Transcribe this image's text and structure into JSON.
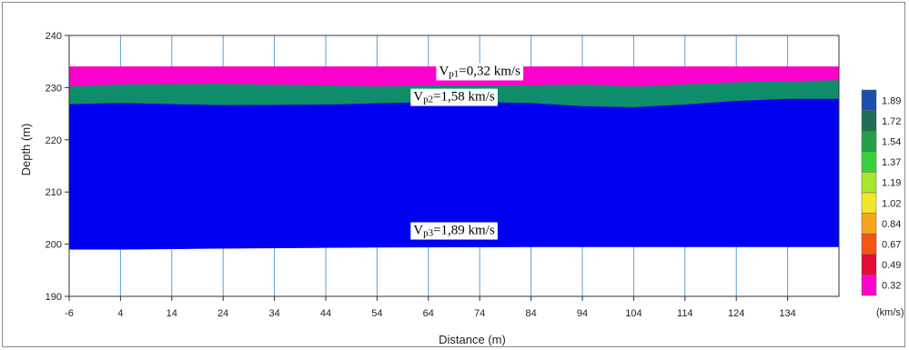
{
  "chart_data": {
    "type": "area",
    "title": "",
    "xlabel": "Distance (m)",
    "ylabel": "Depth (m)",
    "xlim": [
      -6,
      144
    ],
    "ylim": [
      190,
      240
    ],
    "x_ticks": [
      -6,
      4,
      14,
      24,
      34,
      44,
      54,
      64,
      74,
      84,
      94,
      104,
      114,
      124,
      134
    ],
    "y_ticks": [
      190,
      200,
      210,
      220,
      230,
      240
    ],
    "grid": "vertical",
    "layers": [
      {
        "name": "layer-1",
        "color": "#ff00cc",
        "top": [
          [
            -6,
            234
          ],
          [
            144,
            234
          ]
        ],
        "bottom": [
          [
            -6,
            230.2
          ],
          [
            4,
            230.6
          ],
          [
            24,
            230.7
          ],
          [
            44,
            230.4
          ],
          [
            54,
            230.2
          ],
          [
            64,
            230.4
          ],
          [
            84,
            230.4
          ],
          [
            94,
            230.6
          ],
          [
            104,
            230.2
          ],
          [
            114,
            230.6
          ],
          [
            124,
            231.0
          ],
          [
            144,
            231.4
          ]
        ]
      },
      {
        "name": "layer-2",
        "color": "#0f8c6a",
        "top": "layer-1.bottom",
        "bottom": [
          [
            -6,
            226.8
          ],
          [
            4,
            227.0
          ],
          [
            14,
            226.8
          ],
          [
            24,
            226.6
          ],
          [
            44,
            226.7
          ],
          [
            64,
            227.2
          ],
          [
            74,
            227.2
          ],
          [
            84,
            227.0
          ],
          [
            94,
            226.4
          ],
          [
            104,
            226.2
          ],
          [
            114,
            226.7
          ],
          [
            124,
            227.4
          ],
          [
            134,
            227.8
          ],
          [
            144,
            227.8
          ]
        ]
      },
      {
        "name": "layer-3",
        "color": "#0000f0",
        "top": "layer-2.bottom",
        "bottom": [
          [
            -6,
            199.0
          ],
          [
            4,
            199.0
          ],
          [
            24,
            199.2
          ],
          [
            54,
            199.4
          ],
          [
            84,
            199.5
          ],
          [
            114,
            199.5
          ],
          [
            144,
            199.5
          ]
        ]
      }
    ],
    "annotations": [
      {
        "main": "V",
        "sub": "p1",
        "text": "=0,32 km/s",
        "x": 74,
        "y": 233.3
      },
      {
        "main": "V",
        "sub": "p2",
        "text": "=1,58 km/s",
        "x": 69,
        "y": 228.4
      },
      {
        "main": "V",
        "sub": "p3",
        "text": "=1,89 km/s",
        "x": 69,
        "y": 202.8
      }
    ],
    "colorbar": {
      "unit": "(km/s)",
      "levels": [
        "1.89",
        "1.72",
        "1.54",
        "1.37",
        "1.19",
        "1.02",
        "0.84",
        "0.67",
        "0.49",
        "0.32"
      ],
      "colors": [
        "#1a4fb0",
        "#1f6e58",
        "#24a048",
        "#37d23a",
        "#a7e82c",
        "#f1e62a",
        "#f5a51e",
        "#f45414",
        "#e40a38",
        "#ff00cc"
      ]
    }
  }
}
